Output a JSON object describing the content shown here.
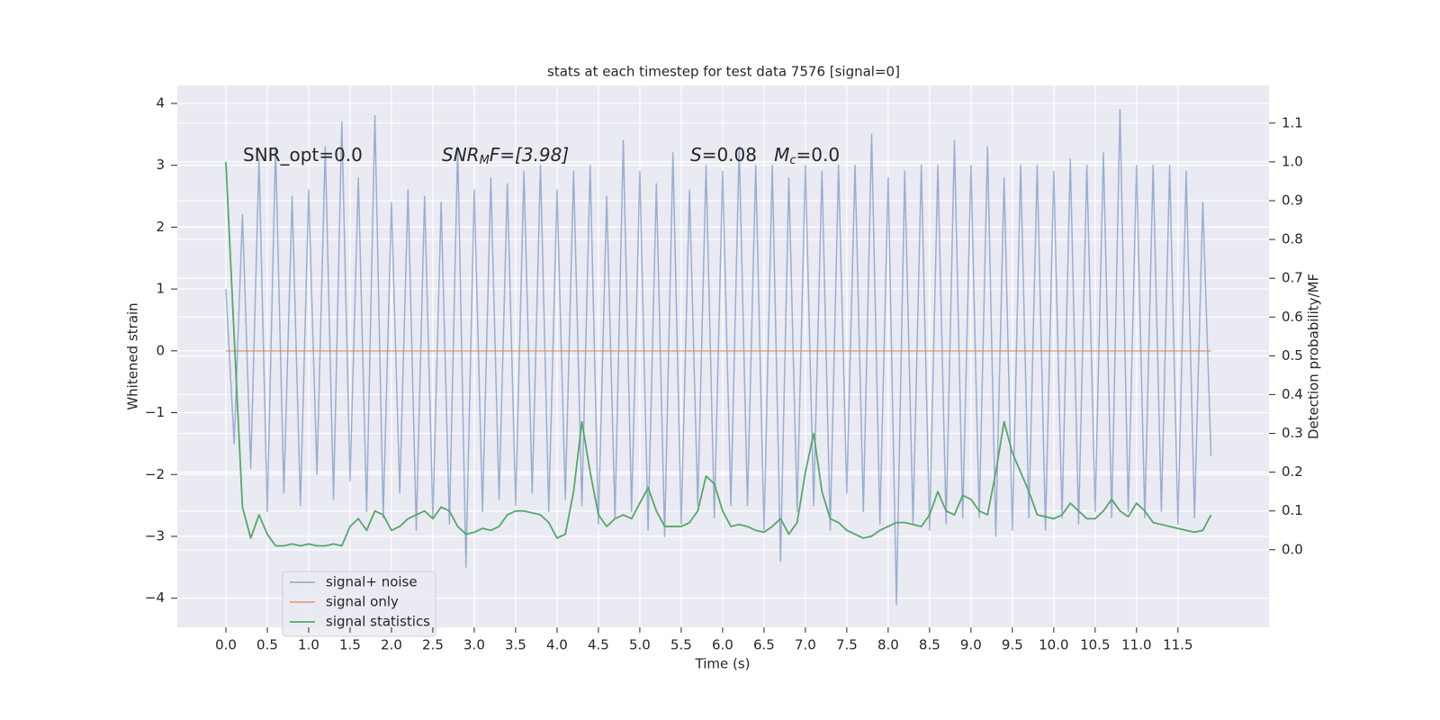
{
  "chart_data": {
    "type": "line",
    "title": "stats at each timestep for test data 7576 [signal=0]",
    "xlabel": "Time (s)",
    "ylabel": "Whitened strain",
    "y2label": "Detection probability/MF",
    "annotations": [
      [
        "SNR_opt=0.0"
      ],
      [
        "SNR",
        "M",
        "F=[3.98]"
      ],
      [
        "S",
        "=0.08   ",
        "M",
        "c",
        "=0.0"
      ]
    ],
    "x": [
      0,
      0.1,
      0.2,
      0.3,
      0.4,
      0.5,
      0.6,
      0.7,
      0.8,
      0.9,
      1.0,
      1.1,
      1.2,
      1.3,
      1.4,
      1.5,
      1.6,
      1.7,
      1.8,
      1.9,
      2.0,
      2.1,
      2.2,
      2.3,
      2.4,
      2.5,
      2.6,
      2.7,
      2.8,
      2.9,
      3.0,
      3.1,
      3.2,
      3.3,
      3.4,
      3.5,
      3.6,
      3.7,
      3.8,
      3.9,
      4.0,
      4.1,
      4.2,
      4.3,
      4.4,
      4.5,
      4.6,
      4.7,
      4.8,
      4.9,
      5.0,
      5.1,
      5.2,
      5.3,
      5.4,
      5.5,
      5.6,
      5.7,
      5.8,
      5.9,
      6.0,
      6.1,
      6.2,
      6.3,
      6.4,
      6.5,
      6.6,
      6.7,
      6.8,
      6.9,
      7.0,
      7.1,
      7.2,
      7.3,
      7.4,
      7.5,
      7.6,
      7.7,
      7.8,
      7.9,
      8.0,
      8.1,
      8.2,
      8.3,
      8.4,
      8.5,
      8.6,
      8.7,
      8.8,
      8.9,
      9.0,
      9.1,
      9.2,
      9.3,
      9.4,
      9.5,
      9.6,
      9.7,
      9.8,
      9.9,
      10.0,
      10.1,
      10.2,
      10.3,
      10.4,
      10.5,
      10.6,
      10.7,
      10.8,
      10.9,
      11.0,
      11.1,
      11.2,
      11.3,
      11.4,
      11.5,
      11.6,
      11.7,
      11.8,
      11.9
    ],
    "series": [
      {
        "name": "signal+ noise",
        "color": "#4c72b0",
        "alpha": 0.5,
        "values": [
          1.0,
          -1.5,
          2.2,
          -1.9,
          3.1,
          -2.6,
          3.3,
          -2.3,
          2.5,
          -2.5,
          2.6,
          -2.0,
          3.3,
          -2.4,
          3.7,
          -2.1,
          2.8,
          -2.6,
          3.8,
          -2.7,
          2.4,
          -2.3,
          2.6,
          -2.9,
          2.5,
          -2.7,
          2.4,
          -2.8,
          3.3,
          -3.5,
          2.6,
          -2.6,
          2.8,
          -2.4,
          2.7,
          -2.5,
          2.9,
          -2.3,
          3.0,
          -2.6,
          2.6,
          -2.4,
          2.9,
          -2.5,
          3.0,
          -2.8,
          2.5,
          -2.7,
          3.4,
          -2.6,
          2.9,
          -2.9,
          2.7,
          -3.0,
          3.2,
          -2.8,
          2.6,
          -2.5,
          3.0,
          -2.7,
          2.9,
          -2.5,
          3.3,
          -2.5,
          3.0,
          -2.9,
          3.0,
          -3.4,
          2.8,
          -2.6,
          3.0,
          -2.5,
          2.9,
          -2.9,
          3.0,
          -2.3,
          3.0,
          -2.6,
          3.5,
          -2.8,
          2.8,
          -4.1,
          2.9,
          -2.8,
          3.0,
          -2.9,
          3.0,
          -2.8,
          3.4,
          -2.7,
          3.0,
          -2.7,
          3.3,
          -3.0,
          2.8,
          -2.9,
          3.0,
          -2.7,
          3.0,
          -2.9,
          2.9,
          -2.7,
          3.1,
          -2.8,
          3.0,
          -2.6,
          3.2,
          -2.7,
          3.9,
          -2.6,
          3.0,
          -2.7,
          3.0,
          -2.6,
          3.0,
          -2.8,
          2.9,
          -2.7,
          2.4,
          -1.7
        ]
      },
      {
        "name": "signal only",
        "color": "#dd8452",
        "alpha": 0.7,
        "x": [
          0,
          11.9
        ],
        "values": [
          0,
          0
        ]
      },
      {
        "name": "signal statistics",
        "color": "#55a868",
        "alpha": 1,
        "axis": "y2",
        "values": [
          1.0,
          0.55,
          0.11,
          0.03,
          0.09,
          0.04,
          0.01,
          0.01,
          0.015,
          0.01,
          0.015,
          0.01,
          0.01,
          0.015,
          0.01,
          0.06,
          0.08,
          0.05,
          0.1,
          0.09,
          0.05,
          0.06,
          0.08,
          0.09,
          0.1,
          0.08,
          0.11,
          0.1,
          0.06,
          0.04,
          0.045,
          0.055,
          0.05,
          0.06,
          0.09,
          0.1,
          0.1,
          0.095,
          0.09,
          0.07,
          0.03,
          0.04,
          0.15,
          0.33,
          0.2,
          0.09,
          0.06,
          0.08,
          0.09,
          0.08,
          0.12,
          0.16,
          0.1,
          0.06,
          0.06,
          0.06,
          0.07,
          0.1,
          0.19,
          0.17,
          0.1,
          0.06,
          0.065,
          0.06,
          0.05,
          0.045,
          0.06,
          0.08,
          0.04,
          0.07,
          0.2,
          0.3,
          0.15,
          0.08,
          0.07,
          0.05,
          0.04,
          0.03,
          0.035,
          0.05,
          0.06,
          0.07,
          0.07,
          0.065,
          0.06,
          0.09,
          0.15,
          0.1,
          0.09,
          0.14,
          0.13,
          0.1,
          0.09,
          0.2,
          0.33,
          0.25,
          0.2,
          0.15,
          0.09,
          0.085,
          0.08,
          0.09,
          0.12,
          0.1,
          0.08,
          0.08,
          0.1,
          0.13,
          0.1,
          0.085,
          0.12,
          0.1,
          0.07,
          0.065,
          0.06,
          0.055,
          0.05,
          0.045,
          0.05,
          0.09
        ]
      }
    ],
    "xlim": [
      -0.587,
      12.6
    ],
    "xticks": [
      {
        "value": 0,
        "label": "0.0"
      },
      0.5,
      {
        "value": 1,
        "label": "1.0"
      },
      1.5,
      {
        "value": 2,
        "label": "2.0"
      },
      2.5,
      {
        "value": 3,
        "label": "3.0"
      },
      3.5,
      {
        "value": 4,
        "label": "4.0"
      },
      4.5,
      {
        "value": 5,
        "label": "5.0"
      },
      5.5,
      {
        "value": 6,
        "label": "6.0"
      },
      6.5,
      {
        "value": 7,
        "label": "7.0"
      },
      7.5,
      {
        "value": 8,
        "label": "8.0"
      },
      8.5,
      {
        "value": 9,
        "label": "9.0"
      },
      9.5,
      {
        "value": 10,
        "label": "10.0"
      },
      10.5,
      {
        "value": 11,
        "label": "11.0"
      },
      11.5
    ],
    "ylim": [
      -4.47,
      4.29
    ],
    "yticks": [
      {
        "value": -4,
        "label": "−4"
      },
      {
        "value": -3,
        "label": "−3"
      },
      {
        "value": -2,
        "label": "−2"
      },
      {
        "value": -1,
        "label": "−1"
      },
      0,
      1,
      2,
      3,
      4
    ],
    "y2lim": [
      -0.2,
      1.197
    ],
    "y2ticks": [
      {
        "value": 0,
        "label": "0.0"
      },
      0.1,
      0.2,
      0.3,
      0.4,
      0.5,
      0.6,
      0.7,
      0.8,
      0.9,
      {
        "value": 1,
        "label": "1.0"
      },
      1.1
    ],
    "grid": true,
    "legend": "lower left",
    "background": "#eaeaf2"
  }
}
